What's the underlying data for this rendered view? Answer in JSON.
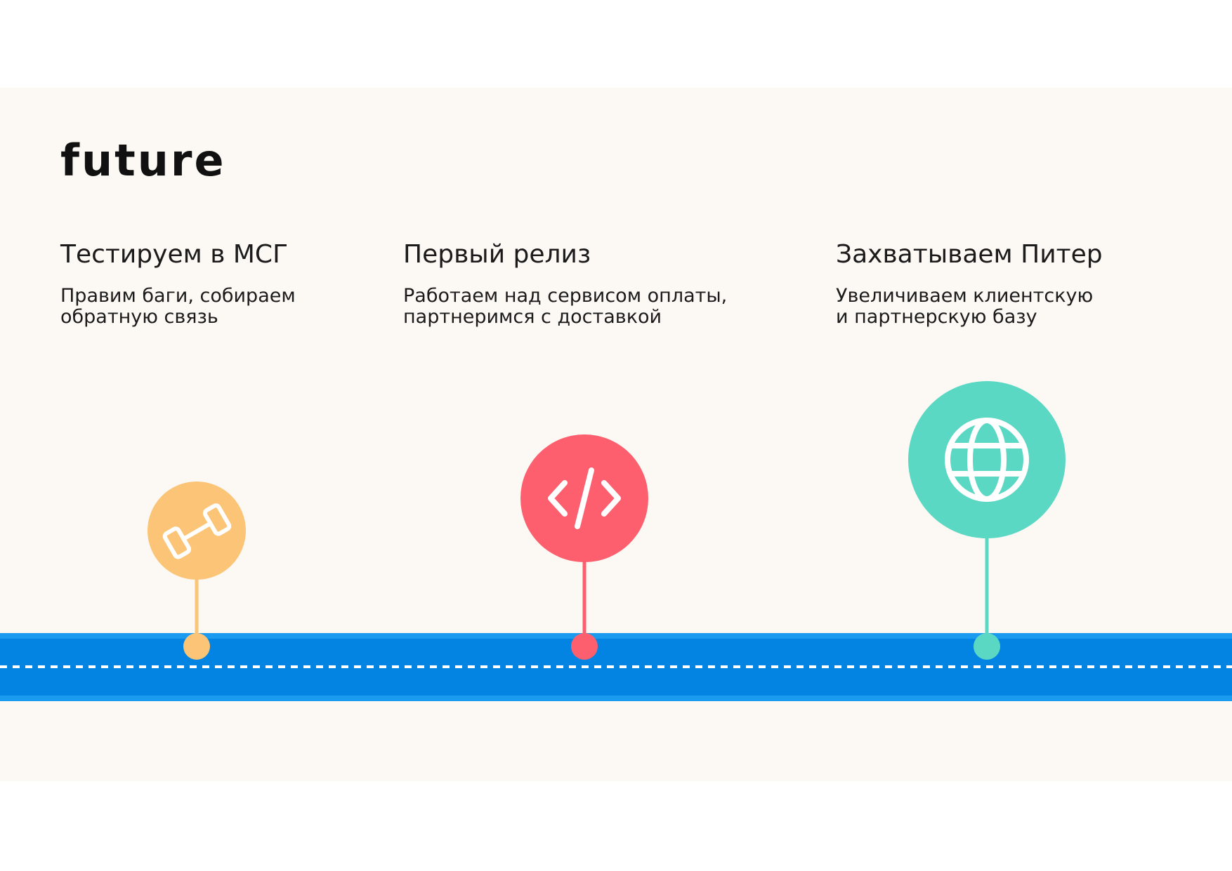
{
  "logo": "future",
  "milestones": [
    {
      "title": "Тестируем в МСГ",
      "description": [
        "Правим баги, собираем",
        "обратную связь"
      ]
    },
    {
      "title": "Первый релиз",
      "description": [
        "Работаем над сервисом оплаты,",
        "партнеримся с доставкой"
      ]
    },
    {
      "title": "Захватываем Питер",
      "description": [
        "Увеличиваем клиентскую",
        "и партнерскую базу"
      ]
    }
  ]
}
